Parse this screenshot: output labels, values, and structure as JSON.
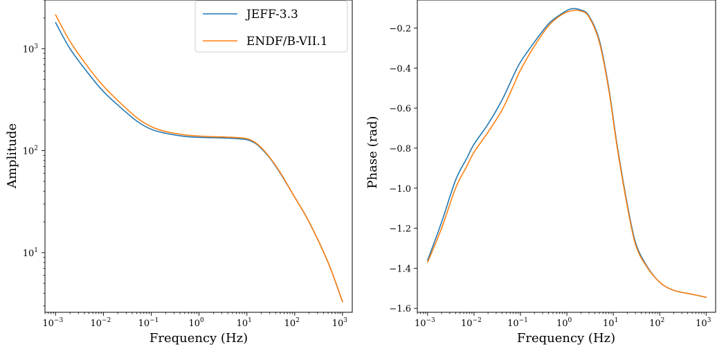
{
  "chart_data": [
    {
      "type": "line",
      "xscale": "log",
      "yscale": "log",
      "xlim": [
        0.0006,
        1600
      ],
      "ylim": [
        2.6,
        3000
      ],
      "xlabel": "Frequency (Hz)",
      "ylabel": "Amplitude",
      "legend": "top-right",
      "x_ticks": [
        {
          "base": "10",
          "exp": "−3",
          "value": 0.001
        },
        {
          "base": "10",
          "exp": "−2",
          "value": 0.01
        },
        {
          "base": "10",
          "exp": "−1",
          "value": 0.1
        },
        {
          "base": "10",
          "exp": "0",
          "value": 1
        },
        {
          "base": "10",
          "exp": "1",
          "value": 10
        },
        {
          "base": "10",
          "exp": "2",
          "value": 100
        },
        {
          "base": "10",
          "exp": "3",
          "value": 1000
        }
      ],
      "y_ticks": [
        {
          "base": "10",
          "exp": "1",
          "value": 10
        },
        {
          "base": "10",
          "exp": "2",
          "value": 100
        },
        {
          "base": "10",
          "exp": "3",
          "value": 1000
        }
      ],
      "series": [
        {
          "name": "JEFF-3.3",
          "color": "#1f77b4",
          "points": [
            [
              0.001,
              1800
            ],
            [
              0.002,
              1000
            ],
            [
              0.005,
              560
            ],
            [
              0.01,
              380
            ],
            [
              0.02,
              280
            ],
            [
              0.05,
              195
            ],
            [
              0.1,
              162
            ],
            [
              0.2,
              148
            ],
            [
              0.5,
              138
            ],
            [
              1,
              135
            ],
            [
              2,
              134
            ],
            [
              5,
              132
            ],
            [
              10,
              128
            ],
            [
              15,
              118
            ],
            [
              20,
              105
            ],
            [
              30,
              85
            ],
            [
              50,
              60
            ],
            [
              100,
              35
            ],
            [
              200,
              20
            ],
            [
              500,
              8
            ],
            [
              1000,
              3.3
            ]
          ]
        },
        {
          "name": "ENDF/B-VII.1",
          "color": "#ff7f0e",
          "points": [
            [
              0.001,
              2150
            ],
            [
              0.002,
              1180
            ],
            [
              0.005,
              640
            ],
            [
              0.01,
              430
            ],
            [
              0.02,
              310
            ],
            [
              0.05,
              210
            ],
            [
              0.1,
              172
            ],
            [
              0.2,
              154
            ],
            [
              0.5,
              143
            ],
            [
              1,
              139
            ],
            [
              2,
              137
            ],
            [
              5,
              135
            ],
            [
              10,
              131
            ],
            [
              15,
              120
            ],
            [
              20,
              107
            ],
            [
              30,
              86
            ],
            [
              50,
              61
            ],
            [
              100,
              35
            ],
            [
              200,
              20
            ],
            [
              500,
              8
            ],
            [
              1000,
              3.3
            ]
          ]
        }
      ]
    },
    {
      "type": "line",
      "xscale": "log",
      "yscale": "linear",
      "xlim": [
        0.0006,
        1600
      ],
      "ylim": [
        -1.62,
        -0.06
      ],
      "xlabel": "Frequency (Hz)",
      "ylabel": "Phase (rad)",
      "x_ticks": [
        {
          "base": "10",
          "exp": "−3",
          "value": 0.001
        },
        {
          "base": "10",
          "exp": "−2",
          "value": 0.01
        },
        {
          "base": "10",
          "exp": "−1",
          "value": 0.1
        },
        {
          "base": "10",
          "exp": "0",
          "value": 1
        },
        {
          "base": "10",
          "exp": "1",
          "value": 10
        },
        {
          "base": "10",
          "exp": "2",
          "value": 100
        },
        {
          "base": "10",
          "exp": "3",
          "value": 1000
        }
      ],
      "y_ticks": [
        {
          "label": "−0.2",
          "value": -0.2
        },
        {
          "label": "−0.4",
          "value": -0.4
        },
        {
          "label": "−0.6",
          "value": -0.6
        },
        {
          "label": "−0.8",
          "value": -0.8
        },
        {
          "label": "−1.0",
          "value": -1.0
        },
        {
          "label": "−1.2",
          "value": -1.2
        },
        {
          "label": "−1.4",
          "value": -1.4
        },
        {
          "label": "−1.6",
          "value": -1.6
        }
      ],
      "series": [
        {
          "name": "JEFF-3.3",
          "color": "#1f77b4",
          "points": [
            [
              0.001,
              -1.36
            ],
            [
              0.002,
              -1.17
            ],
            [
              0.004,
              -0.96
            ],
            [
              0.007,
              -0.85
            ],
            [
              0.01,
              -0.78
            ],
            [
              0.02,
              -0.68
            ],
            [
              0.04,
              -0.56
            ],
            [
              0.07,
              -0.44
            ],
            [
              0.1,
              -0.37
            ],
            [
              0.2,
              -0.27
            ],
            [
              0.4,
              -0.18
            ],
            [
              0.7,
              -0.135
            ],
            [
              1.2,
              -0.105
            ],
            [
              2,
              -0.11
            ],
            [
              3,
              -0.14
            ],
            [
              5,
              -0.26
            ],
            [
              8,
              -0.5
            ],
            [
              12,
              -0.78
            ],
            [
              20,
              -1.08
            ],
            [
              30,
              -1.27
            ],
            [
              50,
              -1.38
            ],
            [
              100,
              -1.47
            ],
            [
              200,
              -1.51
            ],
            [
              500,
              -1.53
            ],
            [
              1000,
              -1.545
            ]
          ]
        },
        {
          "name": "ENDF/B-VII.1",
          "color": "#ff7f0e",
          "points": [
            [
              0.001,
              -1.37
            ],
            [
              0.002,
              -1.2
            ],
            [
              0.004,
              -1.0
            ],
            [
              0.007,
              -0.89
            ],
            [
              0.01,
              -0.82
            ],
            [
              0.02,
              -0.72
            ],
            [
              0.04,
              -0.61
            ],
            [
              0.07,
              -0.49
            ],
            [
              0.1,
              -0.41
            ],
            [
              0.2,
              -0.29
            ],
            [
              0.4,
              -0.19
            ],
            [
              0.7,
              -0.14
            ],
            [
              1.2,
              -0.115
            ],
            [
              2,
              -0.115
            ],
            [
              3,
              -0.145
            ],
            [
              5,
              -0.27
            ],
            [
              8,
              -0.51
            ],
            [
              12,
              -0.79
            ],
            [
              20,
              -1.09
            ],
            [
              30,
              -1.28
            ],
            [
              50,
              -1.385
            ],
            [
              100,
              -1.47
            ],
            [
              200,
              -1.51
            ],
            [
              500,
              -1.53
            ],
            [
              1000,
              -1.545
            ]
          ]
        }
      ]
    }
  ]
}
